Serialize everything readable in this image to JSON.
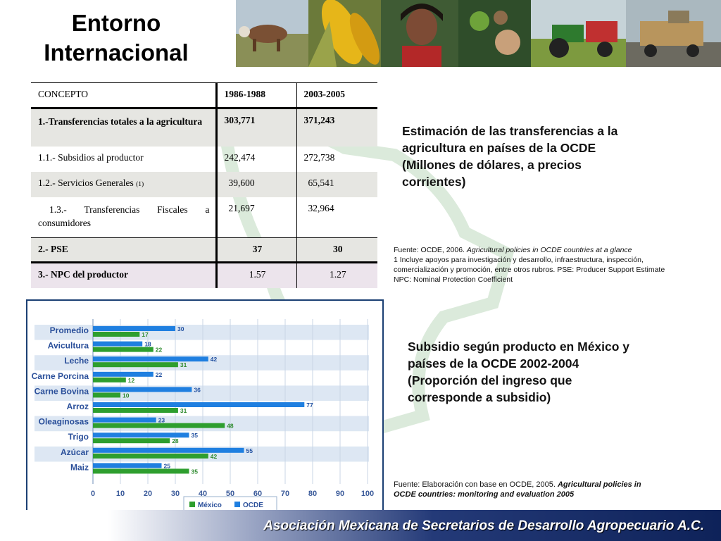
{
  "title": "Entorno Internacional",
  "photo_strip": [
    "cattle-photo",
    "corn-photo",
    "farmer-woman-photo",
    "harvest-hands-photo",
    "tractor-photo",
    "truck-loading-photo"
  ],
  "table": {
    "headers": [
      "CONCEPTO",
      "1986-1988",
      "2003-2005"
    ],
    "rows": [
      {
        "concept": "1.-Transferencias totales a la agricultura",
        "v1": "303,771",
        "v2": "371,243"
      },
      {
        "concept": "1.1.- Subsidios al productor",
        "v1": "242,474",
        "v2": "272,738"
      },
      {
        "concept": "1.2.- Servicios Generales",
        "note": "(1)",
        "v1": "39,600",
        "v2": "65,541"
      },
      {
        "concept": "1.3.- Transferencias Fiscales a consumidores",
        "v1": "21,697",
        "v2": "32,964"
      },
      {
        "concept": "2.- PSE",
        "v1": "37",
        "v2": "30"
      },
      {
        "concept": "3.- NPC del productor",
        "v1": "1.57",
        "v2": "1.27"
      }
    ]
  },
  "desc_1": "Estimación de las transferencias a la agricultura en países de la OCDE (Millones de dólares, a precios corrientes)",
  "source_1": {
    "prefix": "Fuente: OCDE, 2006. ",
    "italic": "Agricultural policies in OCDE countries at a glance",
    "line2": "1 Incluye apoyos para investigación y desarrollo, infraestructura, inspección, comercialización y promoción, entre otros rubros. PSE: Producer Support Estimate NPC: Nominal Protection Coefficient"
  },
  "desc_2": "Subsidio según producto en México y países de la OCDE 2002-2004 (Proporción del ingreso que corresponde a subsidio)",
  "source_2": {
    "prefix": "Fuente: Elaboración con base en OCDE, 2005. ",
    "italic": "Agricultural policies in OCDE countries: monitoring and evaluation 2005"
  },
  "chart_data": {
    "type": "bar",
    "orientation": "horizontal",
    "categories": [
      "Promedio",
      "Avicultura",
      "Leche",
      "Carne Porcina",
      "Carne Bovina",
      "Arroz",
      "Oleaginosas",
      "Trigo",
      "Azúcar",
      "Maiz"
    ],
    "series": [
      {
        "name": "OCDE",
        "color": "#1f7fe0",
        "values": [
          30,
          18,
          42,
          22,
          36,
          77,
          23,
          35,
          55,
          25
        ]
      },
      {
        "name": "México",
        "color": "#2e9e2e",
        "values": [
          17,
          22,
          31,
          12,
          10,
          31,
          48,
          28,
          42,
          35
        ]
      }
    ],
    "xlim": [
      0,
      100
    ],
    "xticks": [
      "0",
      "10",
      "20",
      "30",
      "40",
      "50",
      "60",
      "70",
      "80",
      "90",
      "100"
    ],
    "legend": [
      "México",
      "OCDE"
    ],
    "legend_position": "bottom"
  },
  "footer": "Asociación Mexicana de Secretarios de Desarrollo Agropecuario A.C."
}
